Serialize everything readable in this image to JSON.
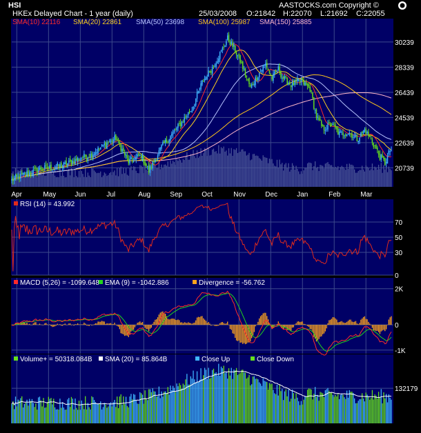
{
  "header": {
    "symbol": "HSI",
    "subtitle": "HKEx  Delayed Chart - 1 year (daily)",
    "date": "25/03/2008",
    "open": "O:21842",
    "high": "H:22070",
    "low": "L:21692",
    "close": "C:22055",
    "copyright": "AASTOCKS.com Copyright ©"
  },
  "colors": {
    "bg": "#000000",
    "panel": "#000066",
    "grid": "#3d4a8c",
    "up": "#3fb6ff",
    "down": "#66e01c",
    "sma10": "#ff2a2a",
    "sma20": "#ffd21e",
    "sma50": "#b8c4ff",
    "sma100": "#ffc61c",
    "sma150": "#ffb7c9",
    "rsi": "#e02a1c",
    "macd": "#ff2a2a",
    "ema": "#22d21c",
    "divergence": "#ffa41c",
    "volume_sma": "#ffffff",
    "text": "#ffffff"
  },
  "chart_data": [
    {
      "type": "candlestick",
      "id": "price",
      "legend": [
        {
          "key": "sma10",
          "label": "SMA(10)",
          "value": "22116"
        },
        {
          "key": "sma20",
          "label": "SMA(20)",
          "value": "22861"
        },
        {
          "key": "sma50",
          "label": "SMA(50)",
          "value": "23698"
        },
        {
          "key": "sma100",
          "label": "SMA(100)",
          "value": "25987"
        },
        {
          "key": "sma150",
          "label": "SMA(150)",
          "value": "25885"
        }
      ],
      "y_ticks": [
        "30239",
        "28339",
        "26439",
        "24539",
        "22639",
        "20739"
      ],
      "y_tick_values": [
        30239,
        28339,
        26439,
        24539,
        22639,
        20739
      ],
      "ylim": [
        19300,
        32000
      ],
      "x_ticks": [
        "Apr",
        "May",
        "Jun",
        "Jul",
        "Aug",
        "Sep",
        "Oct",
        "Nov",
        "Dec",
        "Jan",
        "Feb",
        "Mar"
      ],
      "months": [
        "Apr",
        "May",
        "Jun",
        "Jul",
        "Aug",
        "Sep",
        "Oct",
        "Nov",
        "Dec",
        "Jan",
        "Feb",
        "Mar"
      ],
      "close_waypoints": [
        [
          0,
          19800
        ],
        [
          12,
          20300
        ],
        [
          25,
          20700
        ],
        [
          40,
          20900
        ],
        [
          55,
          21500
        ],
        [
          62,
          21700
        ],
        [
          75,
          22600
        ],
        [
          82,
          23000
        ],
        [
          92,
          21200
        ],
        [
          102,
          21700
        ],
        [
          108,
          20500
        ],
        [
          118,
          22300
        ],
        [
          130,
          23700
        ],
        [
          142,
          25200
        ],
        [
          150,
          27200
        ],
        [
          158,
          28300
        ],
        [
          166,
          29700
        ],
        [
          170,
          30500
        ],
        [
          175,
          29800
        ],
        [
          180,
          28800
        ],
        [
          188,
          26800
        ],
        [
          195,
          27900
        ],
        [
          200,
          28600
        ],
        [
          205,
          27500
        ],
        [
          210,
          28200
        ],
        [
          213,
          27600
        ],
        [
          220,
          27000
        ],
        [
          228,
          27300
        ],
        [
          235,
          26700
        ],
        [
          240,
          24600
        ],
        [
          245,
          23700
        ],
        [
          252,
          24000
        ],
        [
          258,
          23300
        ],
        [
          266,
          23400
        ],
        [
          272,
          22900
        ],
        [
          278,
          23600
        ],
        [
          284,
          22700
        ],
        [
          290,
          21600
        ],
        [
          294,
          21100
        ],
        [
          298,
          22055
        ]
      ]
    },
    {
      "type": "line",
      "id": "rsi",
      "legend": [
        {
          "label": "RSI (14)",
          "value": "= 43.992"
        }
      ],
      "y_ticks": [
        "70",
        "50",
        "30",
        "0"
      ],
      "y_tick_values": [
        70,
        50,
        30,
        0
      ],
      "ylim": [
        0,
        100
      ]
    },
    {
      "type": "line",
      "id": "macd",
      "legend": [
        {
          "key": "macd",
          "label": "MACD (5,26)",
          "value": "= -1099.648"
        },
        {
          "key": "ema",
          "label": "EMA (9)",
          "value": "= -1042.886"
        },
        {
          "key": "divergence",
          "label": "Divergence",
          "value": "= -56.762"
        }
      ],
      "y_ticks": [
        "2K",
        "0",
        "-1K"
      ],
      "y_tick_values": [
        2000,
        0,
        -1400
      ],
      "ylim": [
        -1600,
        2600
      ]
    },
    {
      "type": "bar",
      "id": "volume",
      "legend": [
        {
          "key": "volume_up",
          "label": "Volume+",
          "value": "= 50318.084B"
        },
        {
          "key": "volume_sma",
          "label": "SMA (20)",
          "value": "= 85.864B"
        },
        {
          "key": "up",
          "label": "Close Up",
          "value": ""
        },
        {
          "key": "down",
          "label": "Close Down",
          "value": ""
        }
      ],
      "y_ticks": [
        "132179"
      ],
      "y_tick_values": [
        132179
      ],
      "ylim": [
        0,
        260000
      ]
    }
  ]
}
